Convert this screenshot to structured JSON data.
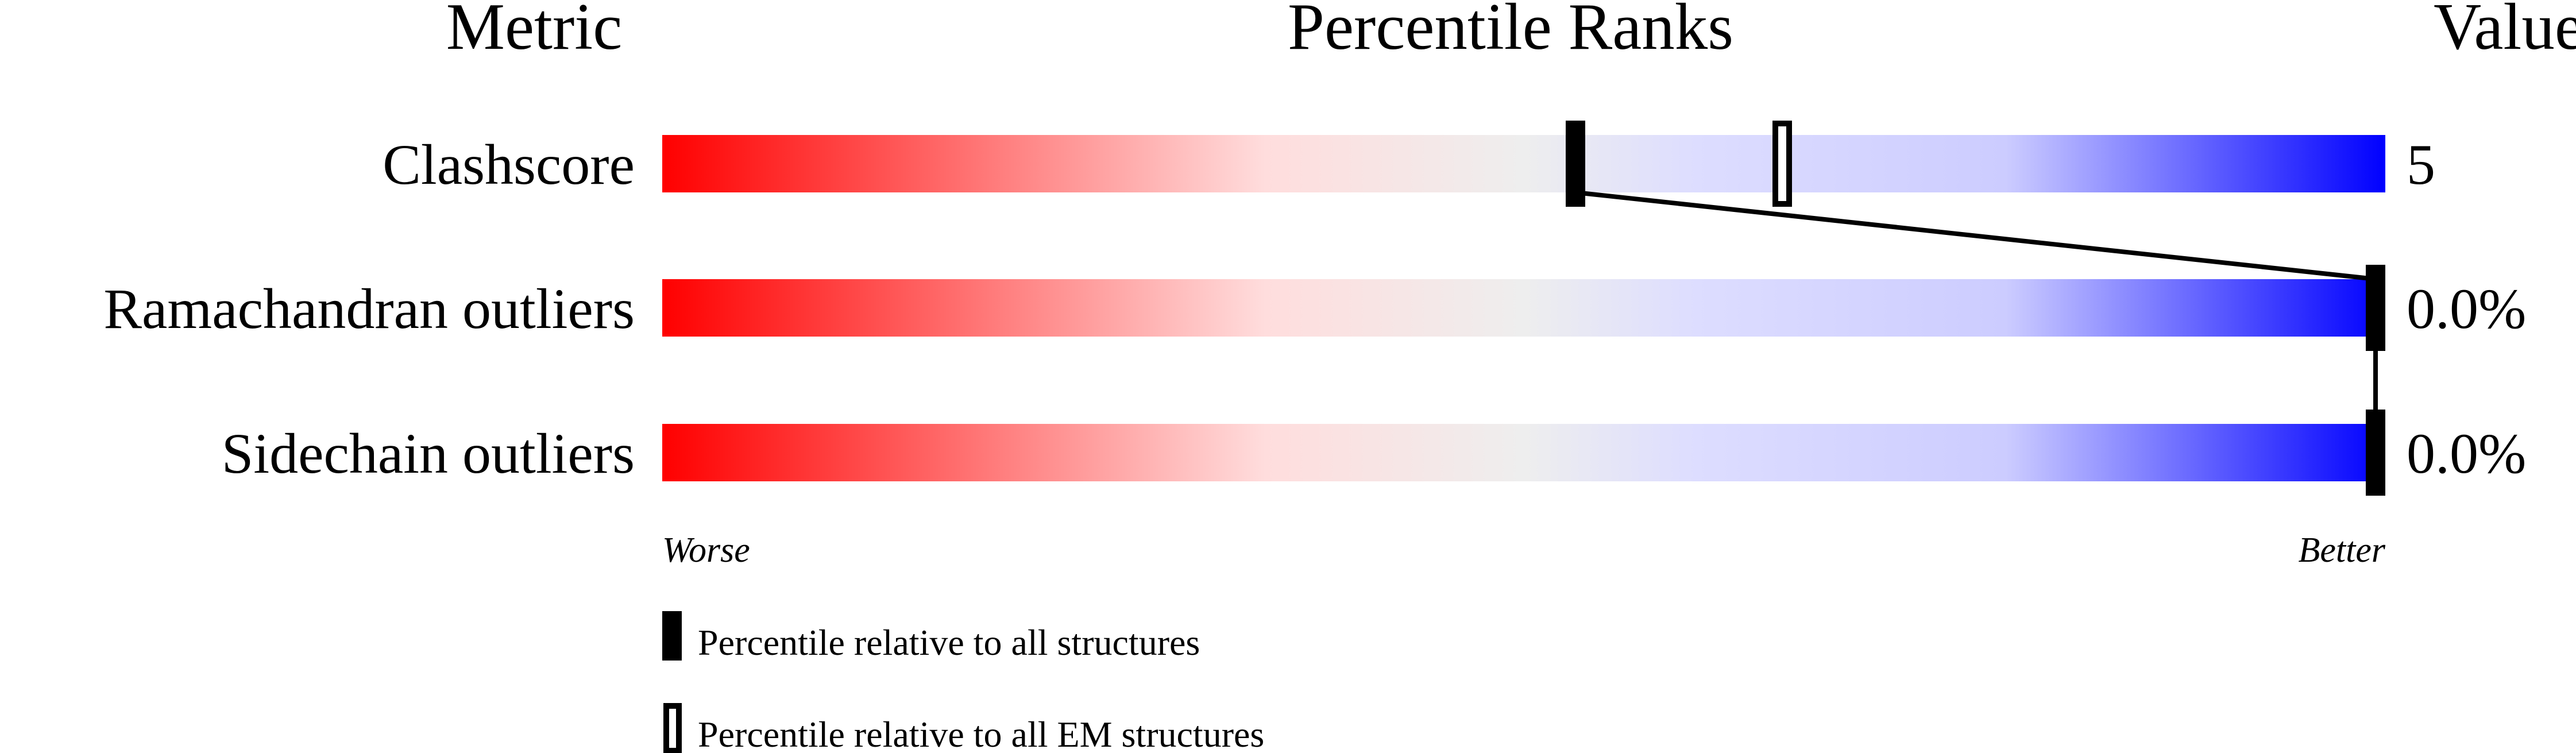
{
  "chart_data": {
    "type": "bar",
    "headers": {
      "metric": "Metric",
      "percentile": "Percentile Ranks",
      "value": "Value"
    },
    "scale_labels": {
      "left": "Worse",
      "right": "Better"
    },
    "xlim": [
      0,
      100
    ],
    "gradient_colors": [
      "#ff0000",
      "#ffdddd",
      "#eeeeee",
      "#ddddff",
      "#0000ff"
    ],
    "rows": [
      {
        "metric": "Clashscore",
        "value": "5",
        "percentile_all": 53,
        "percentile_em": 65
      },
      {
        "metric": "Ramachandran outliers",
        "value": "0.0%",
        "percentile_all": 100
      },
      {
        "metric": "Sidechain outliers",
        "value": "0.0%",
        "percentile_all": 100
      }
    ],
    "legend": [
      {
        "marker": "filled",
        "label": "Percentile relative to all structures"
      },
      {
        "marker": "open",
        "label": "Percentile relative to all EM structures"
      }
    ]
  }
}
